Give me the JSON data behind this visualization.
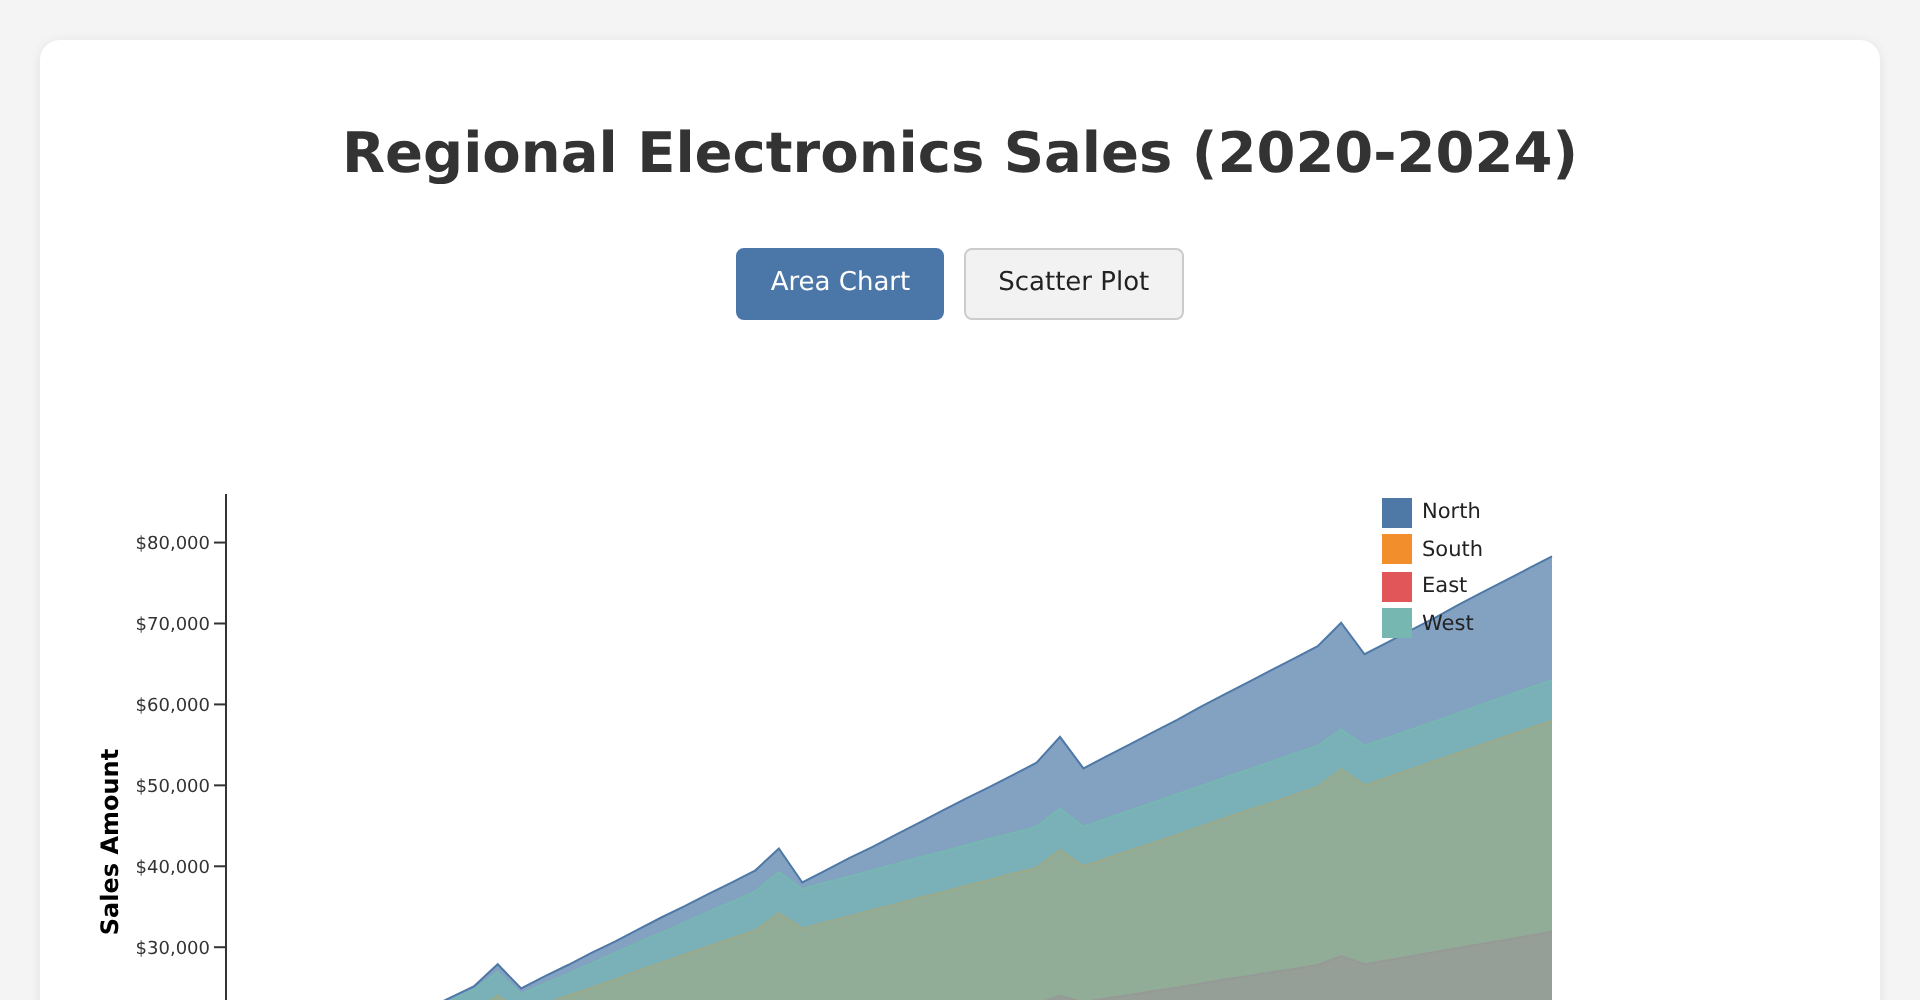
{
  "chart_data": {
    "type": "area",
    "title": "Regional Electronics Sales (2020-2024)",
    "ylabel": "Sales Amount",
    "annotations": [
      "Area Chart",
      "Scatter Plot"
    ],
    "categories": [
      null,
      null,
      null,
      null,
      null,
      null,
      null,
      null,
      null,
      null,
      null,
      null,
      null,
      null,
      null,
      null,
      null,
      null,
      null,
      null,
      null,
      null,
      null,
      null,
      null,
      null,
      null,
      null,
      null,
      null,
      null,
      null,
      null,
      null,
      null,
      null,
      null,
      null,
      null,
      null,
      null,
      null,
      null,
      null,
      null,
      null,
      null,
      null,
      null,
      null,
      null,
      null,
      null,
      null,
      null,
      null,
      null
    ],
    "series": [
      {
        "name": "North",
        "color": "#4e79a7",
        "values": [
          11000,
          12400,
          13800,
          15300,
          16700,
          18100,
          19500,
          20900,
          22400,
          23800,
          25200,
          27900,
          24900,
          26400,
          27800,
          29300,
          30700,
          32200,
          33700,
          35100,
          36600,
          38000,
          39500,
          42200,
          38000,
          39500,
          41000,
          42400,
          43900,
          45400,
          46900,
          48400,
          49800,
          51300,
          52800,
          56000,
          52100,
          53600,
          55100,
          56600,
          58100,
          59700,
          61200,
          62700,
          64200,
          65700,
          67200,
          70100,
          66200,
          67700,
          69200,
          70700,
          72300,
          73800,
          75300,
          76800,
          78300
        ]
      },
      {
        "name": "South",
        "color": "#f28e2c",
        "values": [
          12000,
          13000,
          14000,
          15000,
          16000,
          17000,
          18000,
          19000,
          20000,
          21000,
          22000,
          24000,
          22000,
          23000,
          24000,
          25000,
          26000,
          27100,
          28100,
          29100,
          30100,
          31100,
          32100,
          34200,
          32300,
          33100,
          33800,
          34600,
          35300,
          36100,
          36800,
          37600,
          38300,
          39100,
          39800,
          42000,
          40000,
          41000,
          42000,
          42900,
          43900,
          44900,
          45900,
          46900,
          47800,
          48800,
          49800,
          52000,
          50000,
          51000,
          52000,
          53000,
          54000,
          55000,
          56000,
          57000,
          58000
        ]
      },
      {
        "name": "East",
        "color": "#e15759",
        "values": [
          8000,
          8500,
          9000,
          9500,
          10000,
          10500,
          11000,
          11500,
          12000,
          12500,
          13000,
          14000,
          13200,
          13700,
          14200,
          14600,
          15100,
          15600,
          16100,
          16600,
          17000,
          17500,
          18000,
          19000,
          18300,
          18800,
          19200,
          19700,
          20200,
          20700,
          21100,
          21600,
          22100,
          22500,
          23000,
          24000,
          23200,
          23700,
          24100,
          24600,
          25000,
          25500,
          26000,
          26400,
          26900,
          27300,
          27800,
          28900,
          27900,
          28400,
          28900,
          29400,
          29900,
          30400,
          30900,
          31400,
          31900
        ]
      },
      {
        "name": "West",
        "color": "#76b7b2",
        "values": [
          11000,
          12400,
          13800,
          15100,
          16500,
          17900,
          19300,
          20700,
          22000,
          23400,
          24800,
          26900,
          24200,
          25500,
          26700,
          28000,
          29300,
          30600,
          31800,
          33100,
          34400,
          35600,
          36900,
          39300,
          37200,
          38000,
          38700,
          39500,
          40300,
          41100,
          41800,
          42600,
          43400,
          44100,
          44900,
          47100,
          44900,
          45900,
          46900,
          47900,
          48900,
          49900,
          50900,
          51900,
          52900,
          53900,
          54900,
          56900,
          54900,
          55900,
          56900,
          57900,
          58900,
          60000,
          61000,
          62000,
          63000
        ]
      }
    ],
    "ylim": [
      0,
      86000
    ],
    "yticks": [
      {
        "value": 30000,
        "label": "$30,000"
      },
      {
        "value": 40000,
        "label": "$40,000"
      },
      {
        "value": 50000,
        "label": "$50,000"
      },
      {
        "value": 60000,
        "label": "$60,000"
      },
      {
        "value": 70000,
        "label": "$70,000"
      },
      {
        "value": 80000,
        "label": "$80,000"
      }
    ],
    "grid": false,
    "legend": "top right"
  }
}
